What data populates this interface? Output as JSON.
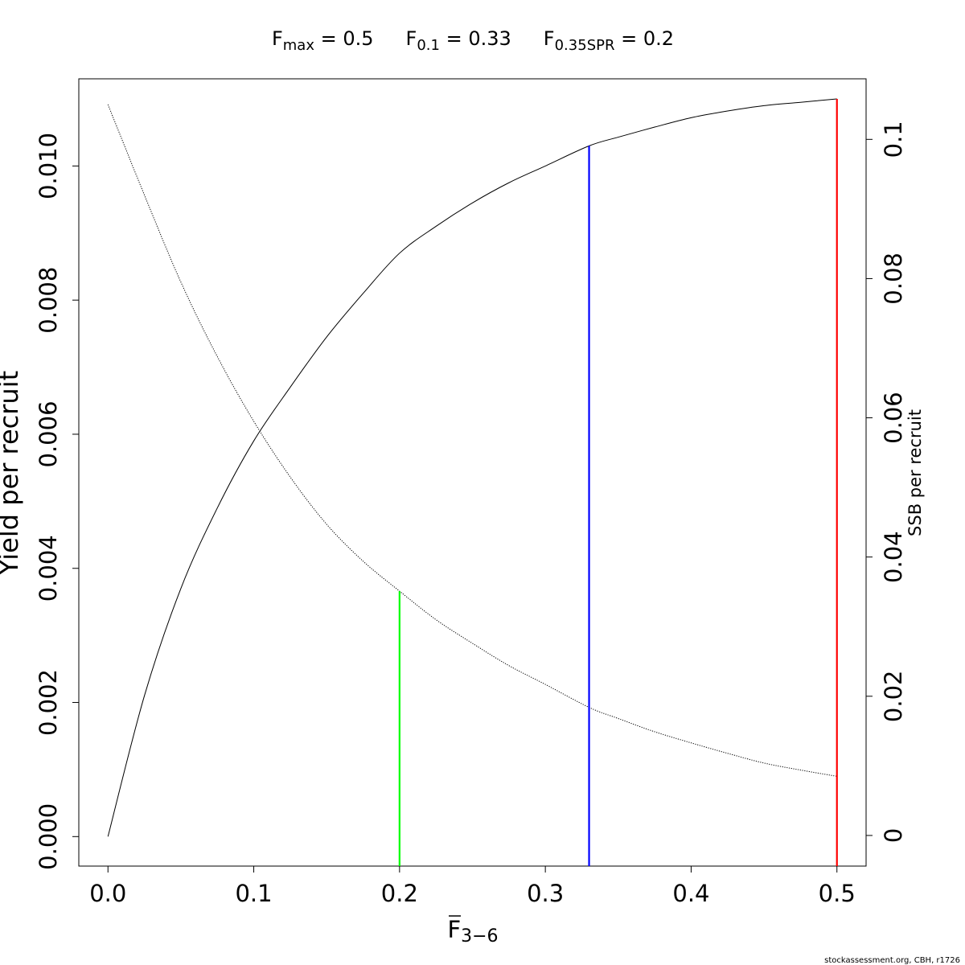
{
  "chart_data": {
    "type": "line",
    "title_parts": [
      {
        "main": "F",
        "sub": "max",
        "rest": " = 0.5"
      },
      {
        "main": "F",
        "sub": "0.1",
        "rest": " = 0.33"
      },
      {
        "main": "F",
        "sub": "0.35SPR",
        "rest": " = 0.2"
      }
    ],
    "xlabel": {
      "main": "F",
      "sub": "3−6"
    },
    "ylabel_left": "Yield per recruit",
    "ylabel_right": "SSB per recruit",
    "xlim": [
      -0.02,
      0.52
    ],
    "ylim_left": [
      -0.00044,
      0.0113
    ],
    "ylim_right": [
      -0.0044,
      0.1087
    ],
    "x_ticks": [
      {
        "value": 0.0,
        "label": "0.0"
      },
      {
        "value": 0.1,
        "label": "0.1"
      },
      {
        "value": 0.2,
        "label": "0.2"
      },
      {
        "value": 0.3,
        "label": "0.3"
      },
      {
        "value": 0.4,
        "label": "0.4"
      },
      {
        "value": 0.5,
        "label": "0.5"
      }
    ],
    "y_left_ticks": [
      {
        "value": 0.0,
        "label": "0.000"
      },
      {
        "value": 0.002,
        "label": "0.002"
      },
      {
        "value": 0.004,
        "label": "0.004"
      },
      {
        "value": 0.006,
        "label": "0.006"
      },
      {
        "value": 0.008,
        "label": "0.008"
      },
      {
        "value": 0.01,
        "label": "0.010"
      }
    ],
    "y_right_ticks": [
      {
        "value": 0.0,
        "label": "0"
      },
      {
        "value": 0.02,
        "label": "0.02"
      },
      {
        "value": 0.04,
        "label": "0.04"
      },
      {
        "value": 0.06,
        "label": "0.06"
      },
      {
        "value": 0.08,
        "label": "0.08"
      },
      {
        "value": 0.1,
        "label": "0.1"
      }
    ],
    "series": [
      {
        "axis": "left",
        "line_style": "solid",
        "color": "#000000",
        "x": [
          0,
          0.025,
          0.05,
          0.075,
          0.1,
          0.125,
          0.15,
          0.175,
          0.2,
          0.225,
          0.25,
          0.275,
          0.3,
          0.33,
          0.35,
          0.375,
          0.4,
          0.425,
          0.45,
          0.475,
          0.5
        ],
        "y": [
          0,
          0.0021,
          0.0037,
          0.0049,
          0.0059,
          0.0067,
          0.00745,
          0.0081,
          0.0087,
          0.0091,
          0.00945,
          0.00975,
          0.01,
          0.0103,
          0.01043,
          0.01058,
          0.01072,
          0.01082,
          0.0109,
          0.01095,
          0.011
        ]
      },
      {
        "axis": "right",
        "line_style": "dotted",
        "color": "#000000",
        "x": [
          0,
          0.025,
          0.05,
          0.075,
          0.1,
          0.125,
          0.15,
          0.175,
          0.2,
          0.225,
          0.25,
          0.275,
          0.3,
          0.33,
          0.35,
          0.375,
          0.4,
          0.425,
          0.45,
          0.475,
          0.5
        ],
        "y": [
          0.105,
          0.092,
          0.0795,
          0.0688,
          0.0595,
          0.0515,
          0.0447,
          0.0394,
          0.0351,
          0.031,
          0.0276,
          0.0244,
          0.0217,
          0.0184,
          0.0168,
          0.0149,
          0.0133,
          0.0118,
          0.0104,
          0.0094,
          0.0085
        ]
      }
    ],
    "reference_lines": [
      {
        "x": 0.2,
        "color": "#00ff00",
        "to_axis": "right",
        "to": 0.0351
      },
      {
        "x": 0.33,
        "color": "#0000ff",
        "to_axis": "left",
        "to": 0.0103
      },
      {
        "x": 0.5,
        "color": "#ff0000",
        "to_axis": "left",
        "to": 0.011
      }
    ],
    "grid": false,
    "legend": "none"
  },
  "footer": {
    "credit": "stockassessment.org, CBH, r1726"
  }
}
